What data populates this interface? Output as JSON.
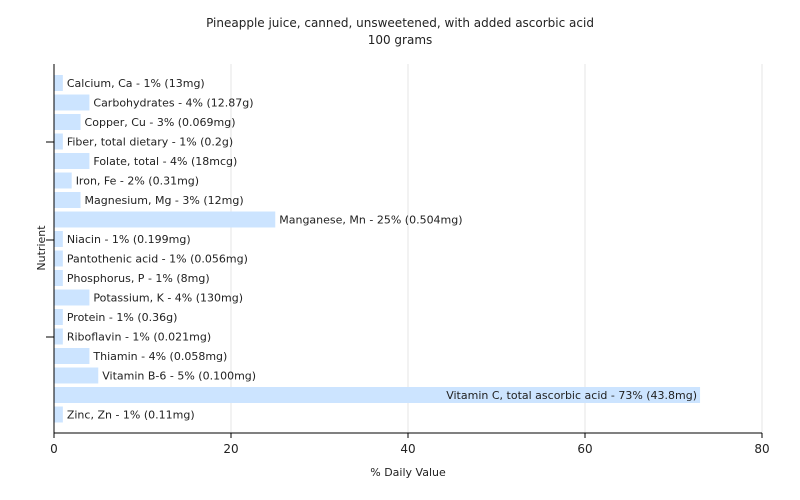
{
  "chart_data": {
    "type": "bar",
    "orientation": "horizontal",
    "title": "Pineapple juice, canned, unsweetened, with added ascorbic acid",
    "subtitle": "100 grams",
    "xlabel": "% Daily Value",
    "ylabel": "Nutrient",
    "xlim": [
      0,
      80
    ],
    "xticks": [
      0,
      20,
      40,
      60,
      80
    ],
    "grid": true,
    "bar_color": "#cce4ff",
    "categories": [
      "Calcium, Ca",
      "Carbohydrates",
      "Copper, Cu",
      "Fiber, total dietary",
      "Folate, total",
      "Iron, Fe",
      "Magnesium, Mg",
      "Manganese, Mn",
      "Niacin",
      "Pantothenic acid",
      "Phosphorus, P",
      "Potassium, K",
      "Protein",
      "Riboflavin",
      "Thiamin",
      "Vitamin B-6",
      "Vitamin C, total ascorbic acid",
      "Zinc, Zn"
    ],
    "values": [
      1,
      4,
      3,
      1,
      4,
      2,
      3,
      25,
      1,
      1,
      1,
      4,
      1,
      1,
      4,
      5,
      73,
      1
    ],
    "labels": [
      "Calcium, Ca - 1% (13mg)",
      "Carbohydrates - 4% (12.87g)",
      "Copper, Cu - 3% (0.069mg)",
      "Fiber, total dietary - 1% (0.2g)",
      "Folate, total - 4% (18mcg)",
      "Iron, Fe - 2% (0.31mg)",
      "Magnesium, Mg - 3% (12mg)",
      "Manganese, Mn - 25% (0.504mg)",
      "Niacin - 1% (0.199mg)",
      "Pantothenic acid - 1% (0.056mg)",
      "Phosphorus, P - 1% (8mg)",
      "Potassium, K - 4% (130mg)",
      "Protein - 1% (0.36g)",
      "Riboflavin - 1% (0.021mg)",
      "Thiamin - 4% (0.058mg)",
      "Vitamin B-6 - 5% (0.100mg)",
      "Vitamin C, total ascorbic acid - 73% (43.8mg)",
      "Zinc, Zn - 1% (0.11mg)"
    ]
  }
}
